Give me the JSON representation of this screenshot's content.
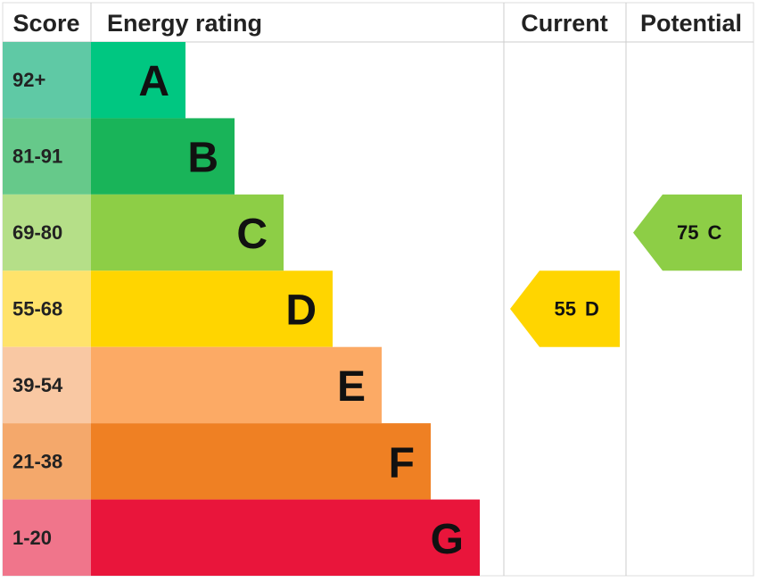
{
  "header": {
    "score": "Score",
    "rating": "Energy rating",
    "current": "Current",
    "potential": "Potential"
  },
  "bands": [
    {
      "score": "92+",
      "rating": "A",
      "color": "#00c781",
      "score_color": "#5fc9a5"
    },
    {
      "score": "81-91",
      "rating": "B",
      "color": "#19b459",
      "score_color": "#66c98a"
    },
    {
      "score": "69-80",
      "rating": "C",
      "color": "#8dce46",
      "score_color": "#b5df88"
    },
    {
      "score": "55-68",
      "rating": "D",
      "color": "#ffd500",
      "score_color": "#ffe36b"
    },
    {
      "score": "39-54",
      "rating": "E",
      "color": "#fcaa65",
      "score_color": "#f9c8a3"
    },
    {
      "score": "21-38",
      "rating": "F",
      "color": "#ef8023",
      "score_color": "#f4a86b"
    },
    {
      "score": "1-20",
      "rating": "G",
      "color": "#e9153b",
      "score_color": "#f0758b"
    }
  ],
  "current": {
    "score": "55",
    "rating": "D"
  },
  "potential": {
    "score": "75",
    "rating": "C"
  }
}
